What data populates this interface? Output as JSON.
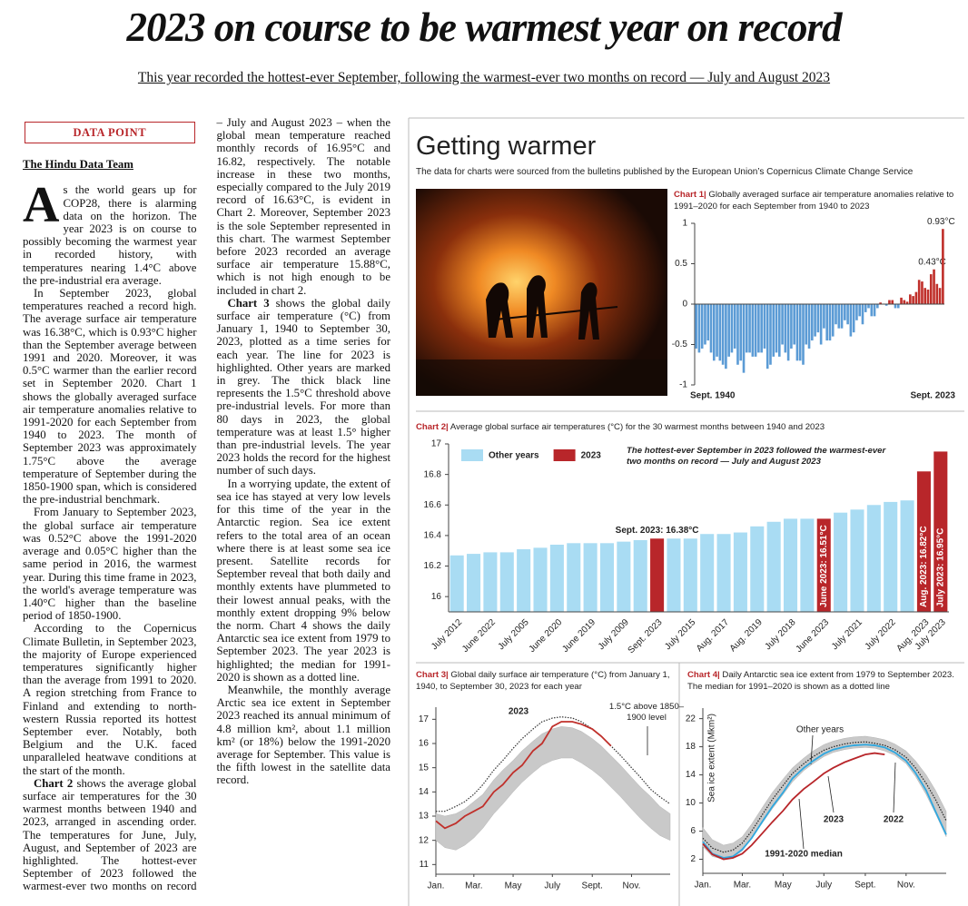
{
  "header": {
    "title": "2023 on course to be warmest year on record",
    "subtitle": "This year recorded the hottest-ever September, following the warmest-ever two months on record — July and August 2023"
  },
  "article": {
    "kicker": "DATA POINT",
    "byline": "The Hindu Data Team",
    "paragraphs": [
      {
        "dropcap": "A",
        "text": "s the world gears up for COP28, there is alarming data on the horizon. The year 2023 is on course to possibly becoming the warmest year in recorded history, with temperatures nearing 1.4°C above the pre-industrial era average."
      },
      "In September 2023, global temperatures reached a record high. The average surface air temperature was 16.38°C, which is 0.93°C higher than the September average between 1991 and 2020. Moreover, it was 0.5°C warmer than the earlier record set in September 2020. Chart 1 shows the globally averaged surface air temperature anomalies relative to 1991-2020 for each September from 1940 to 2023. The month of September 2023 was approximately 1.75°C above the average temperature of September during the 1850-1900 span, which is considered the pre-industrial benchmark.",
      "From January to September 2023, the global surface air temperature was 0.52°C above the 1991-2020 average and 0.05°C higher than the same period in 2016, the warmest year. During this time frame in 2023, the world's average temperature was 1.40°C higher than the baseline period of 1850-1900.",
      "According to the Copernicus Climate Bulletin, in September 2023, the majority of Europe experienced temperatures significantly higher than the average from 1991 to 2020. A region stretching from France to Finland and extending to north-western Russia reported its hottest September ever. Notably, both Belgium and the U.K. faced unparalleled heatwave conditions at the start of the month.",
      {
        "lead": "Chart 2",
        "text": " shows the average global surface air temperatures for the 30 warmest months between 1940 and 2023, arranged in ascending order. The temperatures for June, July, August, and September of 2023 are highlighted. The hottest-ever September of 2023 followed the warmest-ever two months on record – July and August 2023 – when the global mean temperature reached monthly records of 16.95°C and 16.82, respectively. The notable increase in these two months, especially compared to the July 2019 record of 16.63°C, is evident in Chart 2. Moreover, September 2023 is the sole September represented in this chart. The warmest September before 2023 recorded an average surface air temperature 15.88°C, which is not high enough to be included in chart 2."
      },
      {
        "lead": "Chart 3",
        "text": " shows the global daily surface air temperature (°C) from January 1, 1940 to September 30, 2023, plotted as a time series for each year. The line for 2023 is highlighted. Other years are marked in grey. The thick black line represents the 1.5°C threshold above pre-industrial levels. For more than 80 days in 2023, the global temperature was at least 1.5° higher than pre-industrial levels. The year 2023 holds the record for the highest number of such days."
      },
      "In a worrying update, the extent of sea ice has stayed at very low levels for this time of the year in the Antarctic region. Sea ice extent refers to the total area of an ocean where there is at least some sea ice present. Satellite records for September reveal that both daily and monthly extents have plummeted to their lowest annual peaks, with the monthly extent dropping 9% below the norm. Chart 4 shows the daily Antarctic sea ice extent from 1979 to September 2023. The year 2023 is highlighted; the median for 1991-2020 is shown as a dotted line.",
      "Meanwhile, the monthly average Arctic sea ice extent in September 2023 reached its annual minimum of 4.8 million km², about 1.1 million km² (or 18%) below the 1991-2020 average for September. This value is the fifth lowest in the satellite data record."
    ]
  },
  "panel": {
    "title": "Getting warmer",
    "subtitle": "The data for charts were sourced from the bulletins published by the European Union’s Copernicus Climate Change Service"
  },
  "chart_data": [
    {
      "type": "bar",
      "label": "Chart 1|",
      "title": "Globally averaged surface air temperature anomalies relative to 1991–2020 for each September from 1940 to 2023",
      "categories": [
        "Sept. 1940",
        null,
        null,
        null,
        null,
        null,
        null,
        null,
        null,
        null,
        null,
        null,
        null,
        null,
        null,
        null,
        null,
        null,
        null,
        null,
        null,
        null,
        null,
        null,
        null,
        null,
        null,
        null,
        null,
        null,
        null,
        null,
        null,
        null,
        null,
        null,
        null,
        null,
        null,
        null,
        null,
        null,
        null,
        null,
        null,
        null,
        null,
        null,
        null,
        null,
        null,
        null,
        null,
        null,
        null,
        null,
        null,
        null,
        null,
        null,
        null,
        null,
        null,
        null,
        null,
        null,
        null,
        null,
        null,
        null,
        null,
        null,
        null,
        null,
        null,
        null,
        null,
        null,
        null,
        null,
        null,
        null,
        null,
        "Sept. 2023"
      ],
      "values": [
        -0.55,
        -0.6,
        -0.55,
        -0.5,
        -0.45,
        -0.6,
        -0.7,
        -0.65,
        -0.7,
        -0.75,
        -0.8,
        -0.65,
        -0.6,
        -0.55,
        -0.75,
        -0.7,
        -0.85,
        -0.6,
        -0.6,
        -0.65,
        -0.65,
        -0.6,
        -0.6,
        -0.55,
        -0.8,
        -0.75,
        -0.65,
        -0.6,
        -0.65,
        -0.5,
        -0.6,
        -0.7,
        -0.55,
        -0.5,
        -0.7,
        -0.7,
        -0.75,
        -0.5,
        -0.55,
        -0.45,
        -0.4,
        -0.35,
        -0.5,
        -0.3,
        -0.45,
        -0.45,
        -0.4,
        -0.25,
        -0.3,
        -0.3,
        -0.2,
        -0.25,
        -0.4,
        -0.35,
        -0.2,
        -0.15,
        -0.25,
        -0.1,
        -0.05,
        -0.15,
        -0.15,
        -0.05,
        0.02,
        0.0,
        -0.02,
        0.05,
        0.05,
        -0.05,
        -0.05,
        0.08,
        0.05,
        0.03,
        0.12,
        0.1,
        0.15,
        0.3,
        0.28,
        0.2,
        0.18,
        0.37,
        0.43,
        0.25,
        0.2,
        0.93
      ],
      "value_labels": [
        null,
        null,
        null,
        null,
        null,
        null,
        null,
        null,
        null,
        null,
        null,
        null,
        null,
        null,
        null,
        null,
        null,
        null,
        null,
        null,
        null,
        null,
        null,
        null,
        null,
        null,
        null,
        null,
        null,
        null,
        null,
        null,
        null,
        null,
        null,
        null,
        null,
        null,
        null,
        null,
        null,
        null,
        null,
        null,
        null,
        null,
        null,
        null,
        null,
        null,
        null,
        null,
        null,
        null,
        null,
        null,
        null,
        null,
        null,
        null,
        null,
        null,
        null,
        null,
        null,
        null,
        null,
        null,
        null,
        null,
        null,
        null,
        null,
        null,
        null,
        null,
        null,
        null,
        null,
        null,
        "0.43°C",
        null,
        null,
        "0.93°C"
      ],
      "colors": {
        "negative": "#5b9bd5",
        "positive": "#c0302b"
      },
      "ylim": [
        -1,
        1
      ],
      "yticks": [
        -1,
        -0.5,
        0,
        0.5,
        1
      ],
      "grid": false
    },
    {
      "type": "bar",
      "label": "Chart 2|",
      "title": "Average global surface air temperatures (°C) for the 30 warmest months between 1940 and 2023",
      "categories": [
        "July 2012",
        null,
        "June 2022",
        null,
        "July 2005",
        null,
        "June 2020",
        null,
        "June 2019",
        null,
        "July 2009",
        null,
        "Sept. 2023",
        null,
        "July 2015",
        null,
        "Aug. 2017",
        null,
        "Aug. 2019",
        null,
        "July 2018",
        null,
        "June 2023",
        null,
        "July 2021",
        null,
        "July 2022",
        null,
        "Aug. 2023",
        "July 2023"
      ],
      "series": [
        {
          "name": "Other years",
          "color": "#a9dcf3",
          "values": [
            16.27,
            16.28,
            16.29,
            16.29,
            16.31,
            16.32,
            16.34,
            16.35,
            16.35,
            16.35,
            16.36,
            16.37,
            null,
            16.38,
            16.38,
            16.41,
            16.41,
            16.42,
            16.46,
            16.49,
            16.51,
            16.51,
            null,
            16.55,
            16.57,
            16.6,
            16.62,
            16.63,
            null,
            null
          ]
        },
        {
          "name": "2023",
          "color": "#b8262a",
          "values": [
            null,
            null,
            null,
            null,
            null,
            null,
            null,
            null,
            null,
            null,
            null,
            null,
            16.38,
            null,
            null,
            null,
            null,
            null,
            null,
            null,
            null,
            null,
            16.51,
            null,
            null,
            null,
            null,
            null,
            16.82,
            16.95
          ],
          "value_labels": [
            null,
            null,
            null,
            null,
            null,
            null,
            null,
            null,
            null,
            null,
            null,
            null,
            "Sept. 2023: 16.38°C",
            null,
            null,
            null,
            null,
            null,
            null,
            null,
            null,
            null,
            "June 2023: 16.51°C",
            null,
            null,
            null,
            null,
            null,
            "Aug. 2023: 16.82°C",
            "July 2023: 16.95°C"
          ]
        }
      ],
      "annotation": "The hottest-ever September in 2023 followed the warmest-ever two months on record — July and August 2023",
      "legend": "top-left",
      "ylim": [
        15.9,
        17
      ],
      "yticks": [
        16,
        16.2,
        16.4,
        16.6,
        16.8,
        17
      ],
      "grid": false
    },
    {
      "type": "line",
      "label": "Chart 3|",
      "title": "Global daily surface air temperature (°C) from January 1, 1940, to September 30, 2023 for each year",
      "x": [
        1,
        15,
        32,
        46,
        60,
        74,
        91,
        105,
        121,
        135,
        152,
        166,
        182,
        196,
        213,
        227,
        244,
        258,
        273,
        288,
        305,
        319,
        335,
        349,
        365
      ],
      "band": {
        "color": "#c9c9c9",
        "low": [
          12.0,
          11.7,
          11.6,
          11.8,
          12.1,
          12.5,
          13.1,
          13.5,
          14.0,
          14.4,
          14.8,
          15.1,
          15.3,
          15.4,
          15.4,
          15.2,
          14.9,
          14.6,
          14.2,
          13.8,
          13.3,
          12.9,
          12.5,
          12.2,
          12.0
        ],
        "high": [
          13.1,
          13.0,
          13.1,
          13.3,
          13.6,
          13.9,
          14.5,
          14.9,
          15.3,
          15.7,
          16.1,
          16.4,
          16.6,
          16.7,
          16.65,
          16.5,
          16.2,
          15.9,
          15.5,
          15.1,
          14.6,
          14.2,
          13.8,
          13.4,
          13.1
        ]
      },
      "series": [
        {
          "name": "1.5°C above 1850–1900 level",
          "color": "#333333",
          "dash": true,
          "values": [
            13.2,
            13.2,
            13.4,
            13.6,
            13.9,
            14.3,
            14.9,
            15.3,
            15.8,
            16.2,
            16.6,
            16.9,
            17.05,
            17.1,
            17.05,
            16.9,
            16.6,
            16.3,
            15.9,
            15.5,
            15.0,
            14.6,
            14.1,
            13.8,
            13.5
          ]
        },
        {
          "name": "2023",
          "color": "#c0302b",
          "values": [
            12.8,
            12.5,
            12.7,
            13.0,
            13.2,
            13.4,
            14.0,
            14.3,
            14.8,
            15.1,
            15.7,
            16.0,
            16.7,
            16.9,
            16.9,
            16.8,
            16.6,
            16.3,
            15.9,
            null,
            null,
            null,
            null,
            null,
            null
          ]
        }
      ],
      "xlim": [
        1,
        365
      ],
      "xticks": [
        {
          "value": 1,
          "label": "Jan."
        },
        {
          "value": 60,
          "label": "Mar."
        },
        {
          "value": 121,
          "label": "May"
        },
        {
          "value": 182,
          "label": "July"
        },
        {
          "value": 244,
          "label": "Sept."
        },
        {
          "value": 305,
          "label": "Nov."
        }
      ],
      "ylim": [
        10.6,
        17.5
      ],
      "yticks": [
        11,
        12,
        13,
        14,
        15,
        16,
        17
      ],
      "grid": false
    },
    {
      "type": "line",
      "label": "Chart 4|",
      "title": "Daily Antarctic sea ice extent from 1979 to September 2023. The median for 1991–2020 is shown as a dotted line",
      "ylabel": "Sea ice extent (Mkm²)",
      "x": [
        1,
        15,
        32,
        46,
        60,
        74,
        91,
        105,
        121,
        135,
        152,
        166,
        182,
        196,
        213,
        227,
        244,
        258,
        273,
        288,
        305,
        319,
        335,
        349,
        365
      ],
      "band": {
        "name": "Other years",
        "color": "#c9c9c9",
        "low": [
          3.8,
          2.4,
          2.0,
          2.2,
          3.2,
          5.0,
          7.3,
          9.2,
          11.2,
          13.0,
          14.6,
          15.6,
          16.6,
          17.2,
          17.6,
          17.8,
          17.9,
          17.8,
          17.4,
          16.8,
          15.6,
          13.8,
          11.2,
          8.5,
          5.2
        ],
        "high": [
          6.5,
          4.8,
          4.0,
          4.3,
          5.2,
          7.0,
          9.5,
          11.5,
          13.4,
          15.0,
          16.4,
          17.4,
          18.3,
          18.8,
          19.2,
          19.4,
          19.5,
          19.3,
          19.0,
          18.4,
          17.4,
          16.0,
          14.0,
          11.8,
          8.8
        ]
      },
      "series": [
        {
          "name": "2022",
          "color": "#2fa8e0",
          "values": [
            4.5,
            2.8,
            2.2,
            2.4,
            3.4,
            5.0,
            7.5,
            9.5,
            11.5,
            13.5,
            15.0,
            16.0,
            17.0,
            17.6,
            18.0,
            18.2,
            18.3,
            18.2,
            17.9,
            17.2,
            16.0,
            14.3,
            11.8,
            8.8,
            5.5
          ]
        },
        {
          "name": "2023",
          "color": "#b8262a",
          "values": [
            4.2,
            2.7,
            2.0,
            2.2,
            2.8,
            4.0,
            5.8,
            7.3,
            8.9,
            10.5,
            12.0,
            13.0,
            14.2,
            15.0,
            15.8,
            16.3,
            16.9,
            17.1,
            16.9,
            null,
            null,
            null,
            null,
            null,
            null
          ]
        },
        {
          "name": "1991-2020 median",
          "color": "#222222",
          "dash": true,
          "values": [
            5.0,
            3.6,
            3.0,
            3.3,
            4.3,
            6.0,
            8.5,
            10.5,
            12.5,
            14.2,
            15.6,
            16.6,
            17.5,
            18.0,
            18.4,
            18.6,
            18.7,
            18.5,
            18.2,
            17.6,
            16.5,
            15.0,
            12.8,
            10.5,
            7.5
          ]
        }
      ],
      "xlim": [
        1,
        365
      ],
      "xticks": [
        {
          "value": 1,
          "label": "Jan."
        },
        {
          "value": 60,
          "label": "Mar."
        },
        {
          "value": 121,
          "label": "May"
        },
        {
          "value": 182,
          "label": "July"
        },
        {
          "value": 244,
          "label": "Sept."
        },
        {
          "value": 305,
          "label": "Nov."
        }
      ],
      "ylim": [
        0,
        23.5
      ],
      "yticks": [
        2,
        6,
        10,
        14,
        18,
        22
      ],
      "grid": false
    }
  ]
}
